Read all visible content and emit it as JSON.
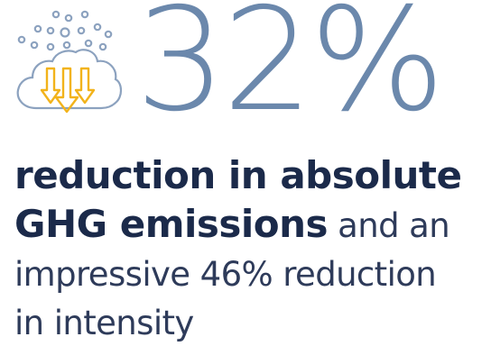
{
  "colors": {
    "stat": "#6b88ac",
    "heading": "#1b2a4a",
    "body": "#2e3b5a",
    "icon_outline": "#8ca2bf",
    "icon_arrow": "#f2b31b"
  },
  "icons": {
    "emissions": "cloud-with-down-arrows-icon"
  },
  "stat": {
    "value": "32%"
  },
  "text": {
    "line1_bold": "reduction in absolute",
    "line2_bold": "GHG emissions",
    "line2_rest": " and an",
    "line3": "impressive 46% reduction",
    "line4": "in intensity"
  }
}
